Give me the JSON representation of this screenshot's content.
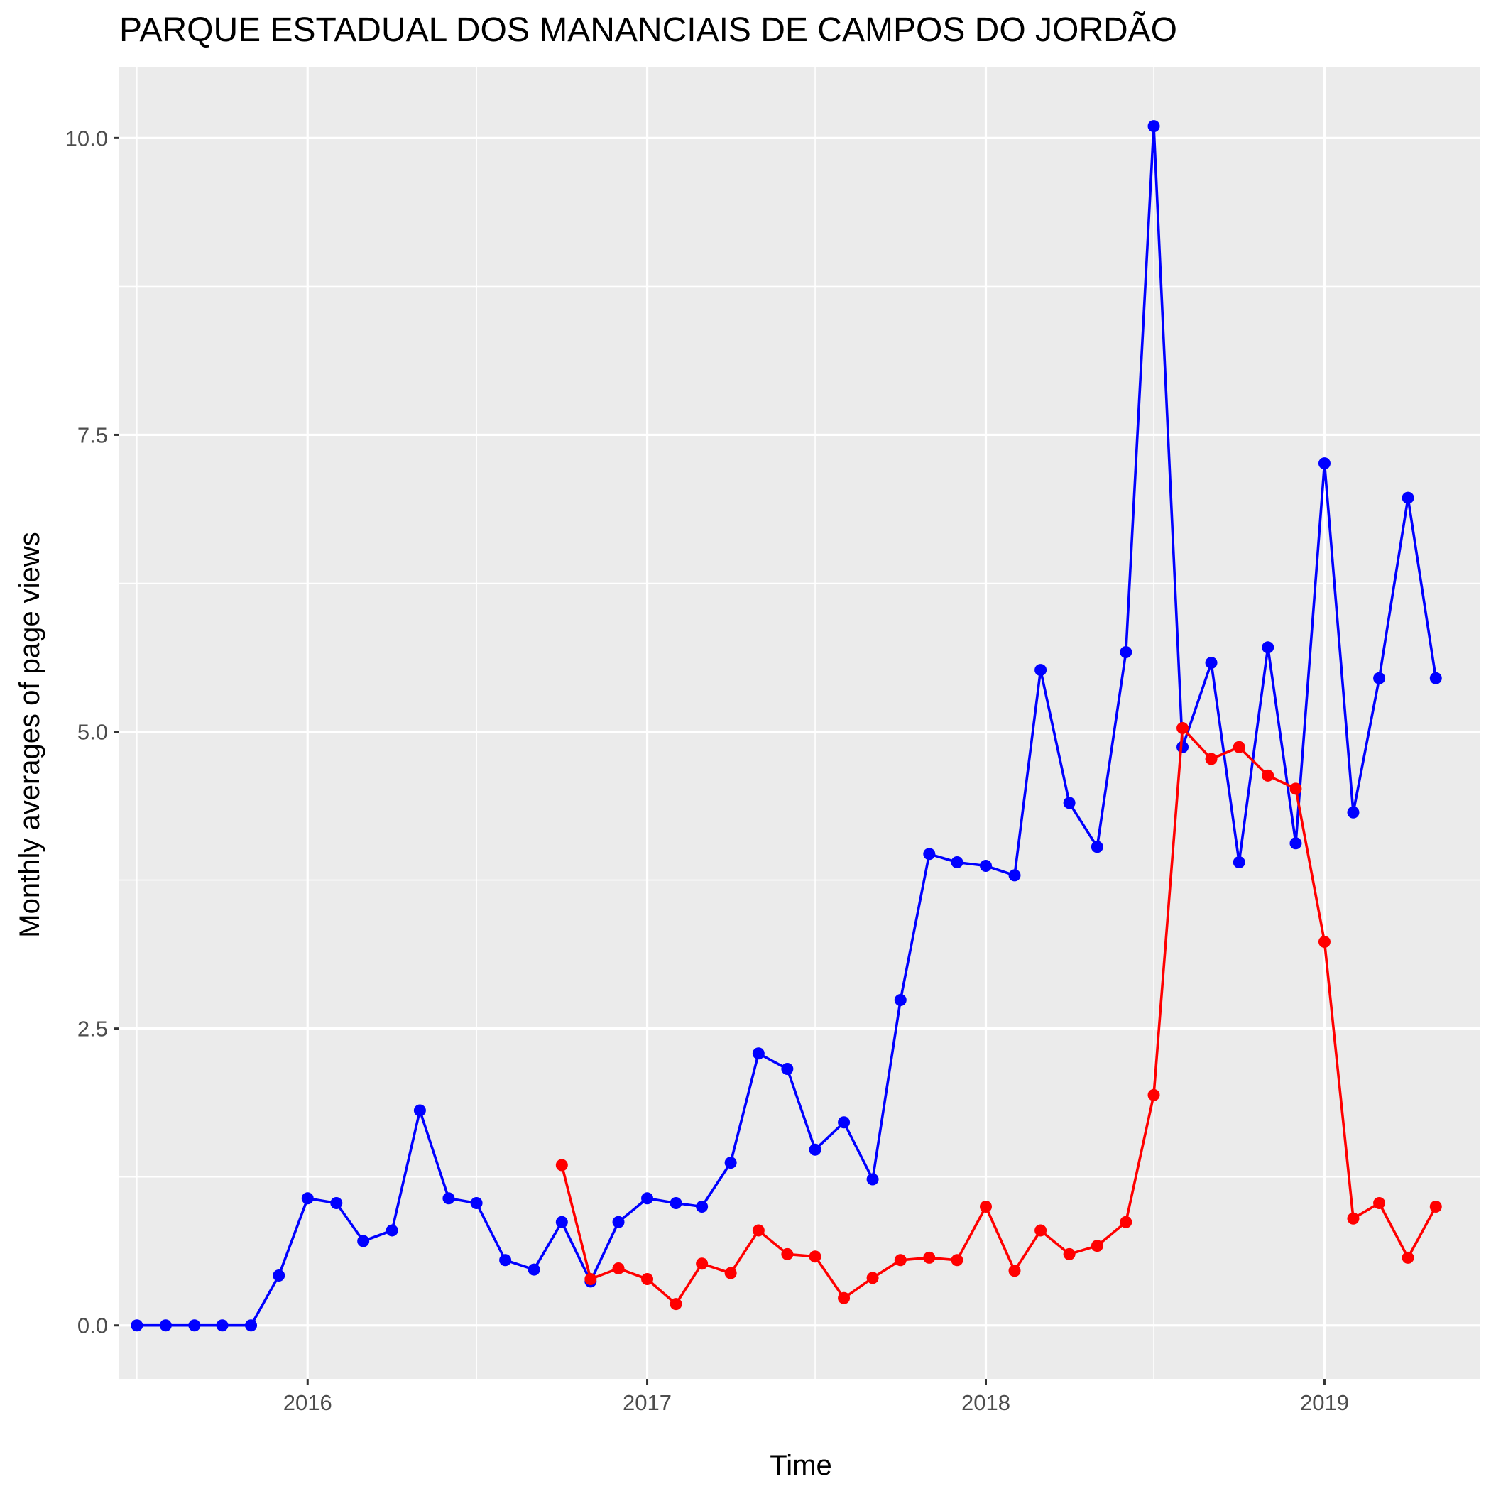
{
  "chart_data": {
    "type": "line",
    "title": "PARQUE ESTADUAL DOS MANANCIAIS DE CAMPOS DO JORDÃO",
    "xlabel": "Time",
    "ylabel": "Monthly averages of page views",
    "x_ticks": [
      "2016",
      "2017",
      "2018",
      "2019"
    ],
    "y_ticks": [
      "0.0",
      "2.5",
      "5.0",
      "7.5",
      "10.0"
    ],
    "ylim": [
      -0.45,
      10.6
    ],
    "xlim": [
      "2015-06-12",
      "2019-06-18"
    ],
    "grid": true,
    "legend": "none",
    "series": [
      {
        "color": "#0000ff",
        "x": [
          "2015-07-01",
          "2015-08-01",
          "2015-09-01",
          "2015-10-01",
          "2015-11-01",
          "2015-12-01",
          "2016-01-01",
          "2016-02-01",
          "2016-03-01",
          "2016-04-01",
          "2016-05-01",
          "2016-06-01",
          "2016-07-01",
          "2016-08-01",
          "2016-09-01",
          "2016-10-01",
          "2016-11-01",
          "2016-12-01",
          "2017-01-01",
          "2017-02-01",
          "2017-03-01",
          "2017-04-01",
          "2017-05-01",
          "2017-06-01",
          "2017-07-01",
          "2017-08-01",
          "2017-09-01",
          "2017-10-01",
          "2017-11-01",
          "2017-12-01",
          "2018-01-01",
          "2018-02-01",
          "2018-03-01",
          "2018-04-01",
          "2018-05-01",
          "2018-06-01",
          "2018-07-01",
          "2018-08-01",
          "2018-09-01",
          "2018-10-01",
          "2018-11-01",
          "2018-12-01",
          "2019-01-01",
          "2019-02-01",
          "2019-03-01",
          "2019-04-01",
          "2019-05-01"
        ],
        "values": [
          0.0,
          0.0,
          0.0,
          0.0,
          0.0,
          0.42,
          1.07,
          1.03,
          0.71,
          0.8,
          1.81,
          1.07,
          1.03,
          0.55,
          0.47,
          0.87,
          0.37,
          0.87,
          1.07,
          1.03,
          1.0,
          1.37,
          2.29,
          2.16,
          1.48,
          1.71,
          1.23,
          2.74,
          3.97,
          3.9,
          3.87,
          3.79,
          5.52,
          4.4,
          4.03,
          5.67,
          10.1,
          4.87,
          5.58,
          3.9,
          5.71,
          4.06,
          7.26,
          4.32,
          5.45,
          6.97,
          5.45
        ]
      },
      {
        "color": "#ff0000",
        "x": [
          "2016-10-01",
          "2016-11-01",
          "2016-12-01",
          "2017-01-01",
          "2017-02-01",
          "2017-03-01",
          "2017-04-01",
          "2017-05-01",
          "2017-06-01",
          "2017-07-01",
          "2017-08-01",
          "2017-09-01",
          "2017-10-01",
          "2017-11-01",
          "2017-12-01",
          "2018-01-01",
          "2018-02-01",
          "2018-03-01",
          "2018-04-01",
          "2018-05-01",
          "2018-06-01",
          "2018-07-01",
          "2018-08-01",
          "2018-09-01",
          "2018-10-01",
          "2018-11-01",
          "2018-12-01",
          "2019-01-01",
          "2019-02-01",
          "2019-03-01",
          "2019-04-01",
          "2019-05-01"
        ],
        "values": [
          1.35,
          0.39,
          0.48,
          0.39,
          0.18,
          0.52,
          0.44,
          0.8,
          0.6,
          0.58,
          0.23,
          0.4,
          0.55,
          0.57,
          0.55,
          1.0,
          0.46,
          0.8,
          0.6,
          0.67,
          0.87,
          1.94,
          5.03,
          4.77,
          4.87,
          4.63,
          4.52,
          3.23,
          0.9,
          1.03,
          0.57,
          1.0
        ]
      }
    ]
  }
}
